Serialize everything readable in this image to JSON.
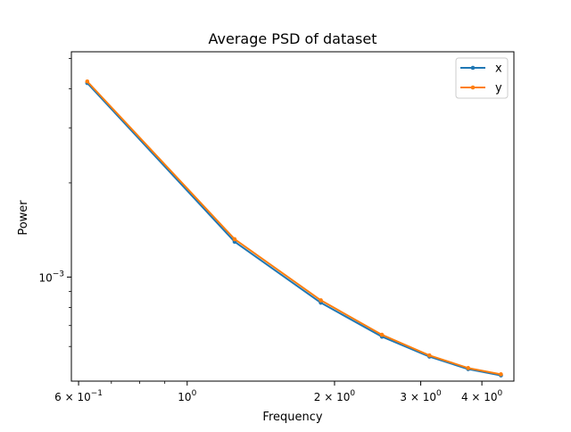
{
  "chart_data": {
    "type": "line",
    "title": "Average PSD of dataset",
    "xlabel": "Frequency",
    "ylabel": "Power",
    "xscale": "log",
    "yscale": "log",
    "xlim": [
      0.58,
      4.65
    ],
    "ylim": [
      0.000465,
      0.00525
    ],
    "grid": false,
    "legend_position": "top-right",
    "x_ticks": [
      {
        "value": 0.6,
        "base": "6 × 10",
        "exp": "−1"
      },
      {
        "value": 1.0,
        "base": "10",
        "exp": "0"
      },
      {
        "value": 2.0,
        "base": "2 × 10",
        "exp": "0"
      },
      {
        "value": 3.0,
        "base": "3 × 10",
        "exp": "0"
      },
      {
        "value": 4.0,
        "base": "4 × 10",
        "exp": "0"
      }
    ],
    "x_minor_ticks": [
      0.7,
      0.8,
      0.9
    ],
    "y_ticks": [
      {
        "value": 0.001,
        "base": "10",
        "exp": "−3"
      }
    ],
    "y_minor_ticks": [
      0.0006,
      0.0007,
      0.0008,
      0.0009,
      0.002,
      0.003,
      0.004,
      0.005
    ],
    "x": [
      0.625,
      1.25,
      1.875,
      2.5,
      3.125,
      3.75,
      4.375
    ],
    "series": [
      {
        "name": "x",
        "color": "#1f77b4",
        "marker": "dot",
        "values": [
          0.00417,
          0.001297,
          0.000828,
          0.000645,
          0.000557,
          0.000508,
          0.000485
        ]
      },
      {
        "name": "y",
        "color": "#ff7f0e",
        "marker": "dot",
        "values": [
          0.00422,
          0.001322,
          0.000843,
          0.000654,
          0.000562,
          0.000512,
          0.000489
        ]
      }
    ]
  }
}
